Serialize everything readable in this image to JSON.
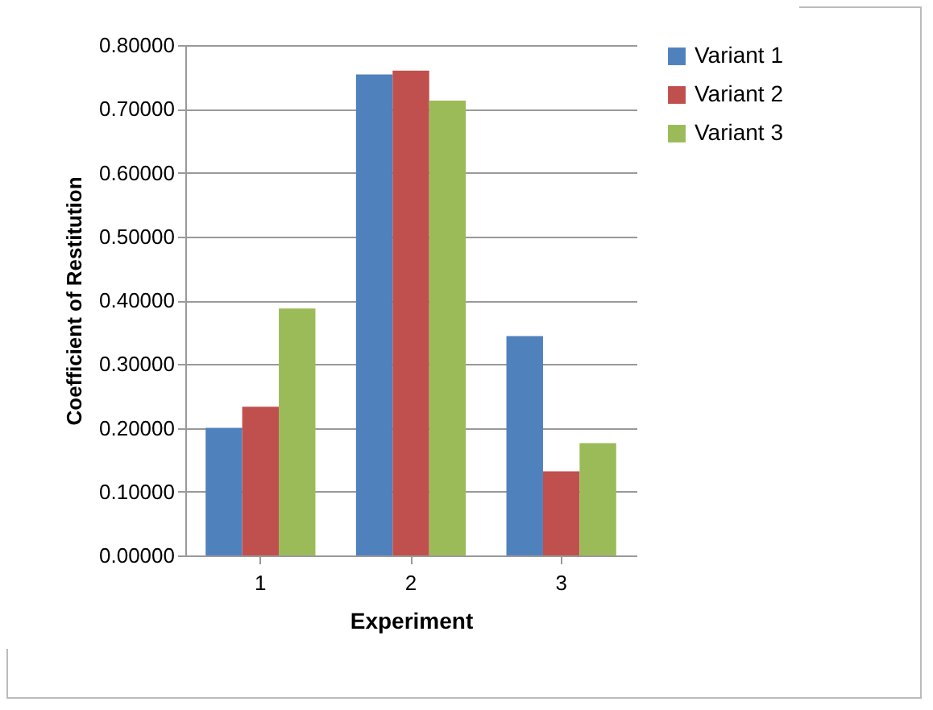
{
  "chart_data": {
    "type": "bar",
    "xlabel": "Experiment",
    "ylabel": "Coefficient of Restitution",
    "categories": [
      "1",
      "2",
      "3"
    ],
    "series": [
      {
        "name": "Variant 1",
        "color": "#4f81bd",
        "values": [
          0.2,
          0.754,
          0.344
        ]
      },
      {
        "name": "Variant 2",
        "color": "#c0504d",
        "values": [
          0.233,
          0.76,
          0.132
        ]
      },
      {
        "name": "Variant 3",
        "color": "#9bbb59",
        "values": [
          0.387,
          0.713,
          0.176
        ]
      }
    ],
    "ylim": [
      0,
      0.8
    ],
    "yticks": [
      {
        "value": 0,
        "label": "0.00000"
      },
      {
        "value": 0.1,
        "label": "0.10000"
      },
      {
        "value": 0.2,
        "label": "0.20000"
      },
      {
        "value": 0.3,
        "label": "0.30000"
      },
      {
        "value": 0.4,
        "label": "0.40000"
      },
      {
        "value": 0.5,
        "label": "0.50000"
      },
      {
        "value": 0.6,
        "label": "0.60000"
      },
      {
        "value": 0.7,
        "label": "0.70000"
      },
      {
        "value": 0.8,
        "label": "0.80000"
      }
    ],
    "grid": "y",
    "legend": "right"
  }
}
